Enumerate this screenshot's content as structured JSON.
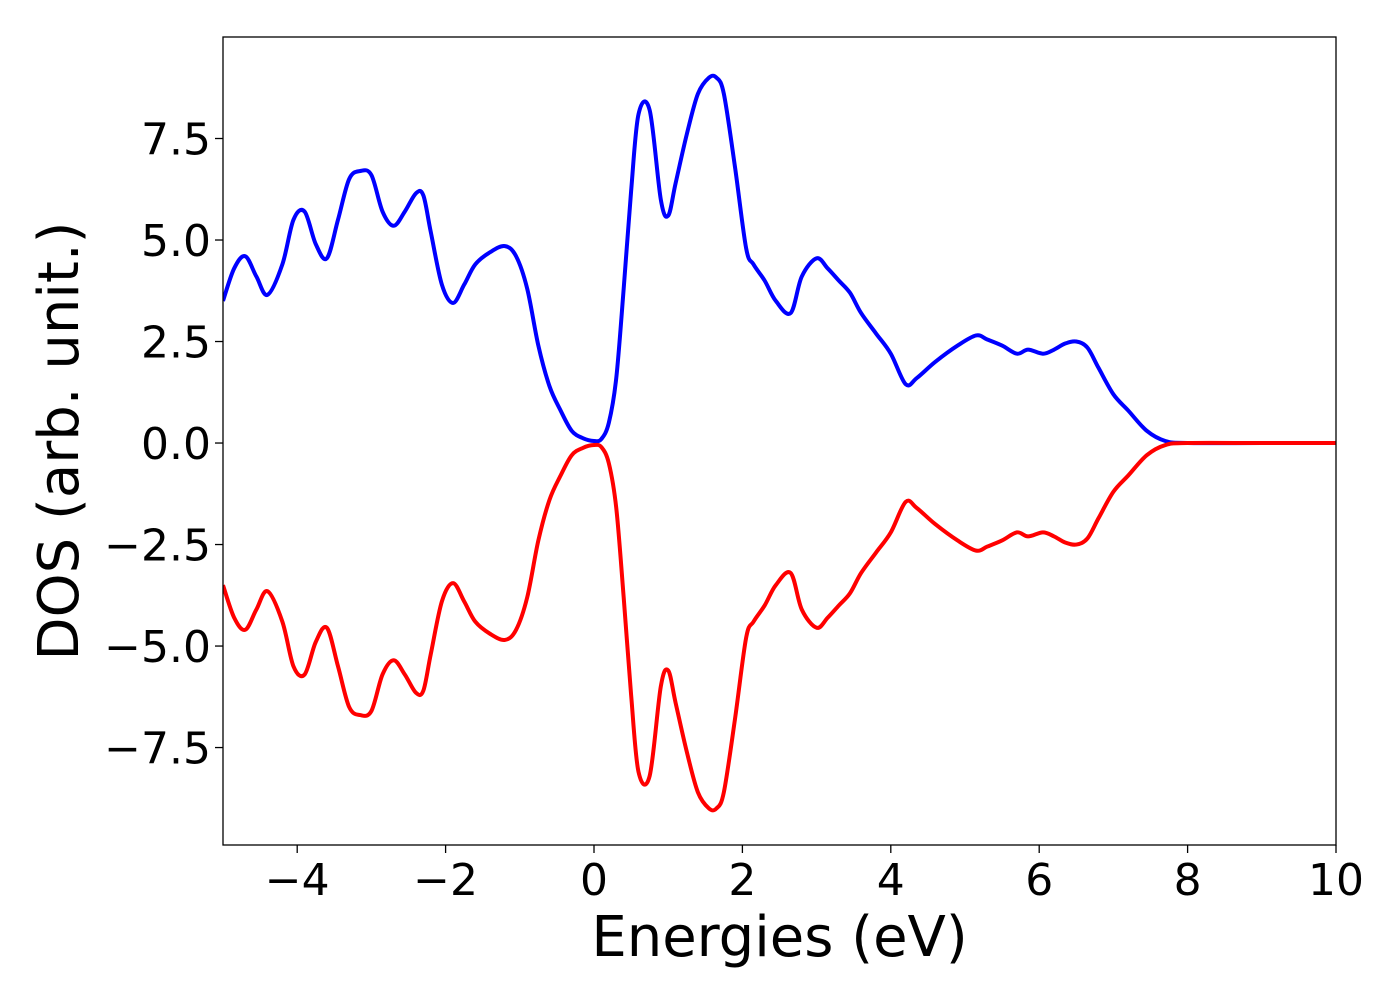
{
  "chart_data": {
    "type": "line",
    "title": "",
    "xlabel": "Energies (eV)",
    "ylabel": "DOS (arb. unit.)",
    "xlim": [
      -5,
      10
    ],
    "ylim": [
      -9.9,
      10.0
    ],
    "grid": false,
    "legend": "none",
    "x_ticks": [
      -4,
      -2,
      0,
      2,
      4,
      6,
      8,
      10
    ],
    "x_tick_labels": [
      "−4",
      "−2",
      "0",
      "2",
      "4",
      "6",
      "8",
      "10"
    ],
    "y_ticks": [
      7.5,
      5.0,
      2.5,
      0.0,
      -2.5,
      -5.0,
      -7.5
    ],
    "y_tick_labels": [
      "7.5",
      "5.0",
      "2.5",
      "0.0",
      "−2.5",
      "−5.0",
      "−7.5"
    ],
    "series": [
      {
        "color": "#0000ff",
        "x": [
          -5.0,
          -4.85,
          -4.7,
          -4.55,
          -4.4,
          -4.2,
          -4.05,
          -3.9,
          -3.75,
          -3.6,
          -3.45,
          -3.3,
          -3.15,
          -3.0,
          -2.85,
          -2.7,
          -2.55,
          -2.4,
          -2.3,
          -2.2,
          -2.05,
          -1.9,
          -1.75,
          -1.6,
          -1.4,
          -1.2,
          -1.05,
          -0.9,
          -0.75,
          -0.6,
          -0.45,
          -0.3,
          -0.15,
          0.0,
          0.1,
          0.2,
          0.3,
          0.4,
          0.5,
          0.6,
          0.75,
          0.9,
          1.0,
          1.1,
          1.25,
          1.4,
          1.55,
          1.65,
          1.75,
          1.9,
          2.05,
          2.15,
          2.3,
          2.45,
          2.65,
          2.8,
          3.0,
          3.15,
          3.3,
          3.45,
          3.6,
          3.8,
          4.0,
          4.2,
          4.35,
          4.6,
          4.9,
          5.15,
          5.3,
          5.5,
          5.7,
          5.85,
          6.05,
          6.2,
          6.35,
          6.5,
          6.65,
          6.8,
          7.0,
          7.2,
          7.45,
          7.7,
          8.0,
          9.0,
          10.0
        ],
        "y": [
          3.5,
          4.3,
          4.6,
          4.1,
          3.65,
          4.4,
          5.5,
          5.7,
          4.9,
          4.55,
          5.5,
          6.5,
          6.7,
          6.6,
          5.7,
          5.35,
          5.7,
          6.15,
          6.1,
          5.2,
          3.9,
          3.45,
          3.9,
          4.4,
          4.7,
          4.85,
          4.6,
          3.8,
          2.4,
          1.4,
          0.8,
          0.3,
          0.12,
          0.05,
          0.1,
          0.5,
          1.6,
          3.8,
          6.2,
          8.1,
          8.2,
          6.0,
          5.6,
          6.4,
          7.6,
          8.6,
          9.0,
          9.0,
          8.6,
          6.8,
          4.8,
          4.4,
          4.0,
          3.5,
          3.2,
          4.1,
          4.55,
          4.3,
          4.0,
          3.7,
          3.2,
          2.7,
          2.2,
          1.45,
          1.6,
          2.0,
          2.4,
          2.65,
          2.55,
          2.4,
          2.2,
          2.3,
          2.2,
          2.3,
          2.45,
          2.5,
          2.35,
          1.85,
          1.2,
          0.8,
          0.3,
          0.05,
          0.0,
          0.0,
          0.0
        ]
      },
      {
        "color": "#ff0000",
        "x": [
          -5.0,
          -4.85,
          -4.7,
          -4.55,
          -4.4,
          -4.2,
          -4.05,
          -3.9,
          -3.75,
          -3.6,
          -3.45,
          -3.3,
          -3.15,
          -3.0,
          -2.85,
          -2.7,
          -2.55,
          -2.4,
          -2.3,
          -2.2,
          -2.05,
          -1.9,
          -1.75,
          -1.6,
          -1.4,
          -1.2,
          -1.05,
          -0.9,
          -0.75,
          -0.6,
          -0.45,
          -0.3,
          -0.15,
          0.0,
          0.1,
          0.2,
          0.3,
          0.4,
          0.5,
          0.6,
          0.75,
          0.9,
          1.0,
          1.1,
          1.25,
          1.4,
          1.55,
          1.65,
          1.75,
          1.9,
          2.05,
          2.15,
          2.3,
          2.45,
          2.65,
          2.8,
          3.0,
          3.15,
          3.3,
          3.45,
          3.6,
          3.8,
          4.0,
          4.2,
          4.35,
          4.6,
          4.9,
          5.15,
          5.3,
          5.5,
          5.7,
          5.85,
          6.05,
          6.2,
          6.35,
          6.5,
          6.65,
          6.8,
          7.0,
          7.2,
          7.45,
          7.7,
          8.0,
          9.0,
          10.0
        ],
        "y": [
          -3.5,
          -4.3,
          -4.6,
          -4.1,
          -3.65,
          -4.4,
          -5.5,
          -5.7,
          -4.9,
          -4.55,
          -5.5,
          -6.5,
          -6.7,
          -6.6,
          -5.7,
          -5.35,
          -5.7,
          -6.15,
          -6.1,
          -5.2,
          -3.9,
          -3.45,
          -3.9,
          -4.4,
          -4.7,
          -4.85,
          -4.6,
          -3.8,
          -2.4,
          -1.4,
          -0.8,
          -0.3,
          -0.12,
          -0.05,
          -0.1,
          -0.5,
          -1.6,
          -3.8,
          -6.2,
          -8.1,
          -8.2,
          -6.0,
          -5.6,
          -6.4,
          -7.6,
          -8.6,
          -9.0,
          -9.0,
          -8.6,
          -6.8,
          -4.8,
          -4.4,
          -4.0,
          -3.5,
          -3.2,
          -4.1,
          -4.55,
          -4.3,
          -4.0,
          -3.7,
          -3.2,
          -2.7,
          -2.2,
          -1.45,
          -1.6,
          -2.0,
          -2.4,
          -2.65,
          -2.55,
          -2.4,
          -2.2,
          -2.3,
          -2.2,
          -2.3,
          -2.45,
          -2.5,
          -2.35,
          -1.85,
          -1.2,
          -0.8,
          -0.3,
          -0.05,
          0.0,
          0.0,
          0.0
        ]
      }
    ]
  }
}
